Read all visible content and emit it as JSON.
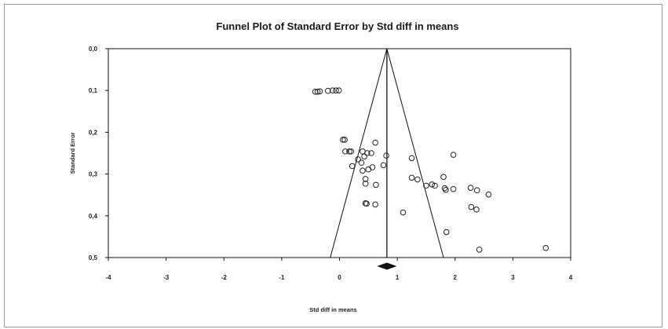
{
  "chart_data": {
    "type": "scatter",
    "title": "Funnel Plot of Standard Error by Std diff in means",
    "xlabel": "Std diff in means",
    "ylabel": "Standard Error",
    "xlim": [
      -4,
      4
    ],
    "ylim": [
      0,
      0.5
    ],
    "y_inverted": true,
    "x_ticks": [
      -4,
      -3,
      -2,
      -1,
      0,
      1,
      2,
      3,
      4
    ],
    "x_tick_labels": [
      "-4",
      "-3",
      "-2",
      "-1",
      "0",
      "1",
      "2",
      "3",
      "4"
    ],
    "y_ticks": [
      0,
      0.1,
      0.2,
      0.3,
      0.4,
      0.5
    ],
    "y_tick_labels": [
      "0,0",
      "0,1",
      "0,2",
      "0,3",
      "0,4",
      "0,5"
    ],
    "summary_estimate": 0.82,
    "summary_ci": [
      0.67,
      0.97
    ],
    "funnel_multiplier": 1.96,
    "points": [
      {
        "x": -0.42,
        "y": 0.103
      },
      {
        "x": -0.38,
        "y": 0.103
      },
      {
        "x": -0.34,
        "y": 0.102
      },
      {
        "x": -0.2,
        "y": 0.101
      },
      {
        "x": -0.12,
        "y": 0.1
      },
      {
        "x": -0.06,
        "y": 0.1
      },
      {
        "x": -0.01,
        "y": 0.1
      },
      {
        "x": 0.06,
        "y": 0.218
      },
      {
        "x": 0.09,
        "y": 0.218
      },
      {
        "x": 0.1,
        "y": 0.246
      },
      {
        "x": 0.17,
        "y": 0.246
      },
      {
        "x": 0.2,
        "y": 0.246
      },
      {
        "x": 0.22,
        "y": 0.281
      },
      {
        "x": 0.32,
        "y": 0.265
      },
      {
        "x": 0.38,
        "y": 0.273
      },
      {
        "x": 0.4,
        "y": 0.246
      },
      {
        "x": 0.43,
        "y": 0.258
      },
      {
        "x": 0.48,
        "y": 0.25
      },
      {
        "x": 0.55,
        "y": 0.25
      },
      {
        "x": 0.62,
        "y": 0.225
      },
      {
        "x": 0.81,
        "y": 0.256
      },
      {
        "x": 0.76,
        "y": 0.279
      },
      {
        "x": 0.4,
        "y": 0.292
      },
      {
        "x": 0.5,
        "y": 0.289
      },
      {
        "x": 0.57,
        "y": 0.284
      },
      {
        "x": 0.45,
        "y": 0.312
      },
      {
        "x": 0.45,
        "y": 0.323
      },
      {
        "x": 0.63,
        "y": 0.326
      },
      {
        "x": 0.45,
        "y": 0.37
      },
      {
        "x": 0.47,
        "y": 0.371
      },
      {
        "x": 0.62,
        "y": 0.373
      },
      {
        "x": 1.1,
        "y": 0.392
      },
      {
        "x": 1.25,
        "y": 0.262
      },
      {
        "x": 1.25,
        "y": 0.309
      },
      {
        "x": 1.35,
        "y": 0.313
      },
      {
        "x": 1.5,
        "y": 0.328
      },
      {
        "x": 1.6,
        "y": 0.325
      },
      {
        "x": 1.65,
        "y": 0.328
      },
      {
        "x": 1.8,
        "y": 0.307
      },
      {
        "x": 1.82,
        "y": 0.334
      },
      {
        "x": 1.84,
        "y": 0.338
      },
      {
        "x": 1.97,
        "y": 0.336
      },
      {
        "x": 1.97,
        "y": 0.254
      },
      {
        "x": 2.27,
        "y": 0.333
      },
      {
        "x": 2.38,
        "y": 0.339
      },
      {
        "x": 2.58,
        "y": 0.349
      },
      {
        "x": 2.28,
        "y": 0.379
      },
      {
        "x": 2.37,
        "y": 0.385
      },
      {
        "x": 1.85,
        "y": 0.439
      },
      {
        "x": 2.42,
        "y": 0.481
      },
      {
        "x": 3.57,
        "y": 0.477
      }
    ]
  }
}
